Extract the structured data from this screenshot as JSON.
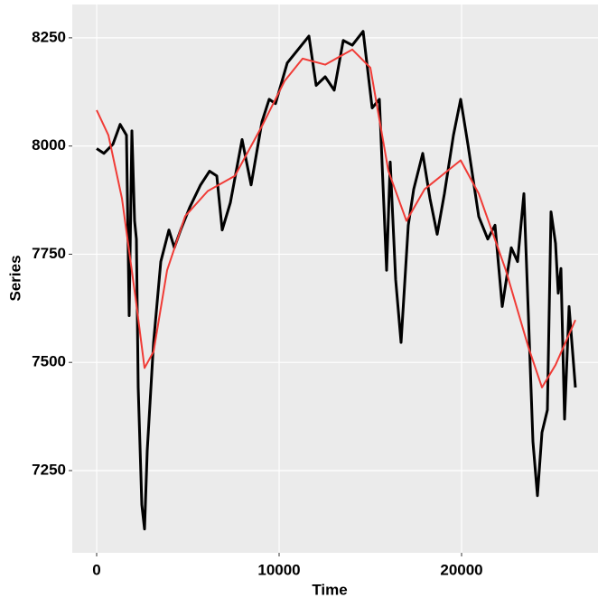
{
  "chart_data": {
    "type": "line",
    "x_label": "Time",
    "y_label": "Series",
    "xlim": [
      -1337,
      27475
    ],
    "ylim": [
      7060,
      8327
    ],
    "xticks": [
      0,
      10000,
      20000
    ],
    "yticks": [
      7250,
      7500,
      7750,
      8000,
      8250
    ],
    "grid": true,
    "series": [
      {
        "color": "#000000",
        "x": [
          0,
          396,
          891,
          1287,
          1634,
          1782,
          1931,
          2079,
          2178,
          2277,
          2475,
          2624,
          2772,
          3119,
          3515,
          3960,
          4257,
          4604,
          5099,
          5693,
          6188,
          6584,
          6881,
          7327,
          7970,
          8465,
          9059,
          9455,
          9802,
          10446,
          11040,
          11634,
          12030,
          12525,
          13020,
          13515,
          14010,
          14604,
          15099,
          15495,
          15891,
          16089,
          16386,
          16683,
          17079,
          17376,
          17871,
          18267,
          18663,
          19059,
          19554,
          19950,
          20346,
          20941,
          21436,
          21832,
          22228,
          22723,
          23069,
          23416,
          23663,
          23911,
          24158,
          24406,
          24703,
          24901,
          25149,
          25297,
          25446,
          25644,
          25891,
          26238
        ],
        "values": [
          7994,
          7983,
          8004,
          8050,
          8025,
          7608,
          8035,
          7827,
          7785,
          7442,
          7171,
          7115,
          7296,
          7546,
          7733,
          7806,
          7765,
          7806,
          7858,
          7910,
          7942,
          7931,
          7806,
          7869,
          8015,
          7910,
          8056,
          8108,
          8098,
          8192,
          8223,
          8254,
          8140,
          8160,
          8129,
          8244,
          8233,
          8265,
          8088,
          8108,
          7713,
          7963,
          7692,
          7546,
          7817,
          7900,
          7983,
          7879,
          7796,
          7890,
          8025,
          8108,
          8004,
          7837,
          7785,
          7817,
          7629,
          7765,
          7733,
          7890,
          7608,
          7317,
          7192,
          7338,
          7390,
          7848,
          7775,
          7660,
          7717,
          7369,
          7629,
          7442
        ]
      },
      {
        "color": "#f03b36",
        "x": [
          0,
          644,
          1386,
          2129,
          2624,
          3119,
          3861,
          4851,
          6089,
          7574,
          9059,
          10297,
          11287,
          12525,
          14010,
          15000,
          15990,
          16980,
          17970,
          19950,
          20941,
          22426,
          23663,
          24406,
          25149,
          26238
        ],
        "values": [
          8083,
          8025,
          7879,
          7650,
          7487,
          7525,
          7713,
          7838,
          7896,
          7931,
          8046,
          8150,
          8202,
          8188,
          8223,
          8181,
          7942,
          7827,
          7900,
          7967,
          7890,
          7713,
          7535,
          7442,
          7494,
          7598
        ]
      }
    ]
  }
}
